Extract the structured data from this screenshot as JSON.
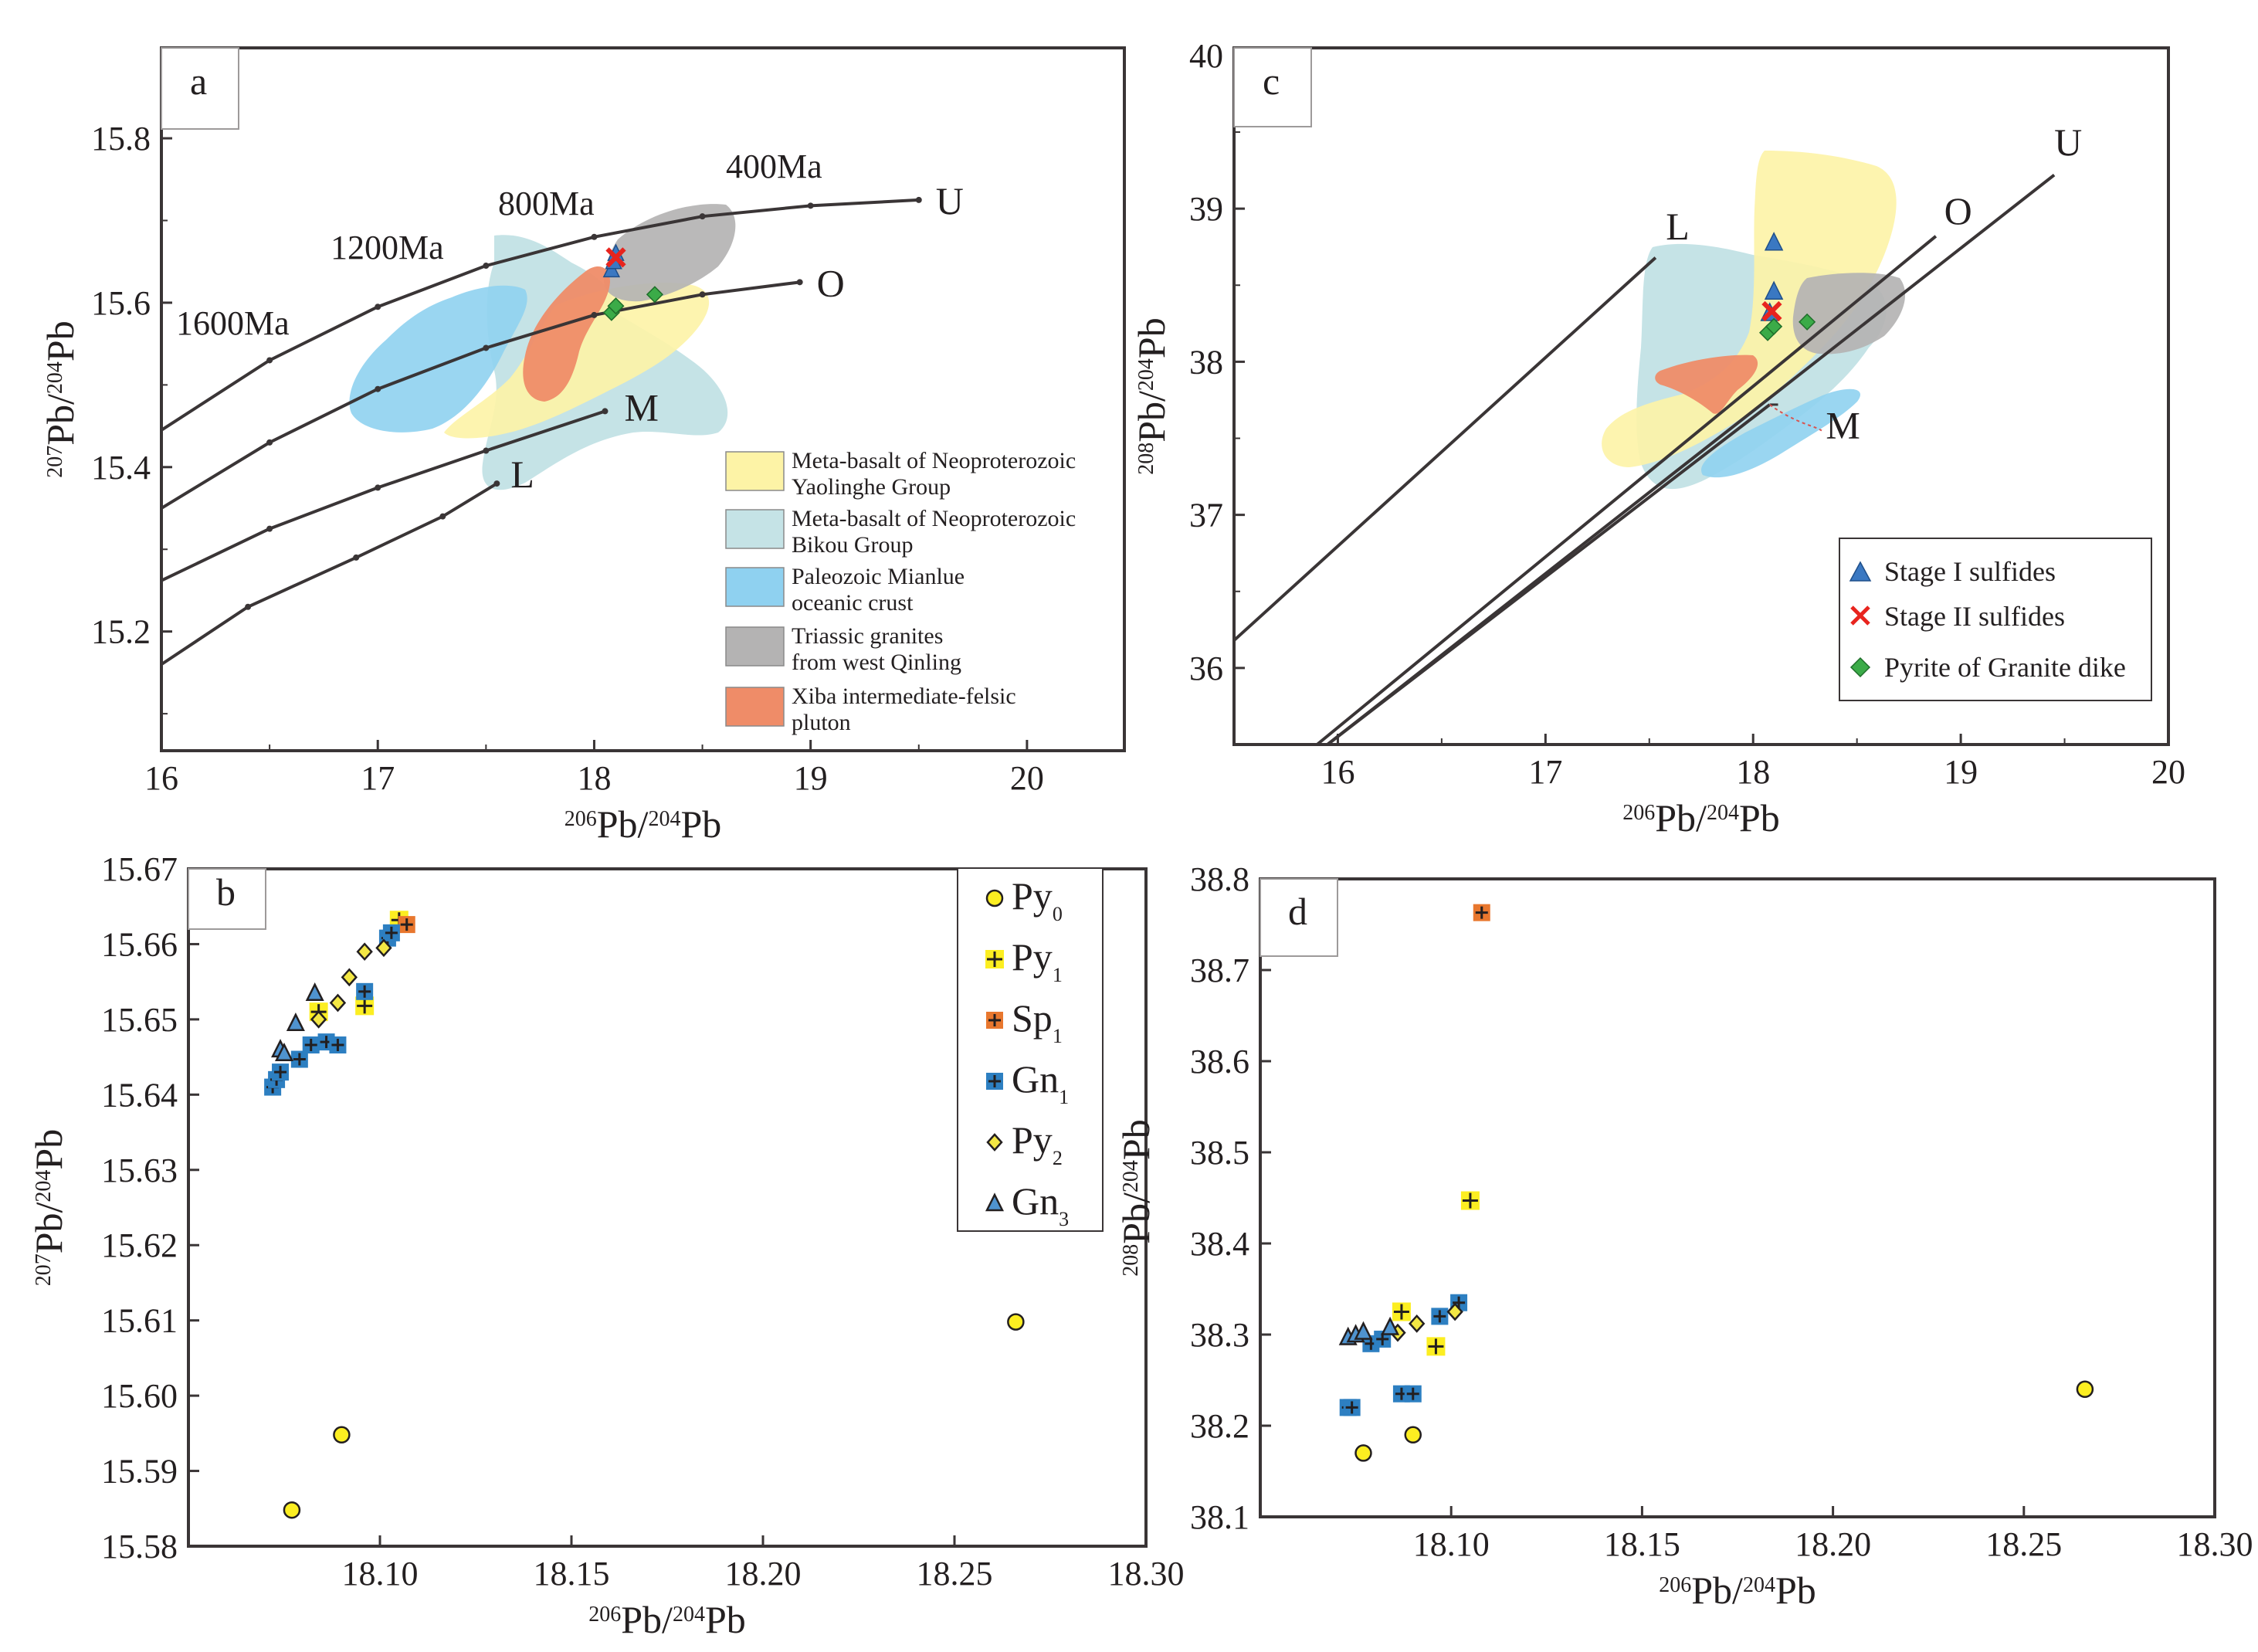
{
  "chart_data": [
    {
      "panel": "a",
      "type": "line",
      "title": "",
      "xlabel": {
        "sup": "206",
        "base": "Pb/",
        "sup2": "204",
        "base2": "Pb"
      },
      "ylabel": {
        "sup": "207",
        "base": "Pb/",
        "sup2": "204",
        "base2": "Pb"
      },
      "xlim": [
        16,
        20.45
      ],
      "ylim": [
        15.055,
        15.91
      ],
      "xticks": [
        "16",
        "17",
        "18",
        "19",
        "20"
      ],
      "yticks": [
        "15.2",
        "15.4",
        "15.6",
        "15.8"
      ],
      "ytick_values": [
        15.2,
        15.4,
        15.6,
        15.8
      ],
      "series": [
        {
          "name": "U",
          "label": "U",
          "x": [
            16.0,
            16.5,
            17.0,
            17.5,
            18.0,
            18.5,
            19.0,
            19.5
          ],
          "y": [
            15.445,
            15.53,
            15.595,
            15.645,
            15.68,
            15.705,
            15.718,
            15.725
          ]
        },
        {
          "name": "O",
          "label": "O",
          "x": [
            16.0,
            16.5,
            17.0,
            17.5,
            18.0,
            18.5,
            18.95
          ],
          "y": [
            15.35,
            15.43,
            15.495,
            15.545,
            15.585,
            15.61,
            15.625
          ]
        },
        {
          "name": "M",
          "label": "M",
          "x": [
            16.0,
            16.5,
            17.0,
            17.5,
            18.05
          ],
          "y": [
            15.262,
            15.325,
            15.375,
            15.42,
            15.468
          ]
        },
        {
          "name": "L",
          "label": "L",
          "x": [
            16.0,
            16.4,
            16.9,
            17.3,
            17.55
          ],
          "y": [
            15.16,
            15.23,
            15.29,
            15.34,
            15.38
          ]
        }
      ],
      "age_labels": [
        "400Ma",
        "800Ma",
        "1200Ma",
        "1600Ma"
      ],
      "fields": [
        {
          "name": "Meta-basalt of Neoproterozoic Bikou Group",
          "label1": "Meta-basalt of Neoproterozoic",
          "label2": "Bikou Group",
          "color": "#c5e3e6"
        },
        {
          "name": "Meta-basalt of Neoproterozoic Yaolinghe Group",
          "label1": "Meta-basalt of Neoproterozoic",
          "label2": "Yaolinghe Group",
          "color": "#fdf3a6"
        },
        {
          "name": "Paleozoic Mianlue oceanic crust",
          "label1": "Paleozoic Mianlue",
          "label2": "oceanic crust",
          "color": "#8fd1f0"
        },
        {
          "name": "Triassic granites from west Qinling",
          "label1": "Triassic granites",
          "label2": "from west Qinling",
          "color": "#b4b3b3"
        },
        {
          "name": "Xiba intermediate-felsic pluton",
          "label1": "Xiba intermediate-felsic",
          "label2": "pluton",
          "color": "#ef8c68"
        }
      ]
    },
    {
      "panel": "b",
      "type": "scatter",
      "xlabel": {
        "sup": "206",
        "base": "Pb/",
        "sup2": "204",
        "base2": "Pb"
      },
      "ylabel": {
        "sup": "207",
        "base": "Pb/",
        "sup2": "204",
        "base2": "Pb"
      },
      "xlim": [
        18.05,
        18.3
      ],
      "ylim": [
        15.58,
        15.67
      ],
      "xticks": [
        "18.10",
        "18.15",
        "18.20",
        "18.25",
        "18.30"
      ],
      "yticks": [
        "15.58",
        "15.59",
        "15.60",
        "15.61",
        "15.62",
        "15.63",
        "15.64",
        "15.65",
        "15.66",
        "15.67"
      ],
      "series": [
        {
          "name": "Py0",
          "base": "Py",
          "sub": "0",
          "x": [
            18.077,
            18.09,
            18.266
          ],
          "y": [
            15.5848,
            15.5948,
            15.6098
          ]
        },
        {
          "name": "Py1",
          "base": "Py",
          "sub": "1",
          "x": [
            18.084,
            18.096,
            18.105
          ],
          "y": [
            15.651,
            15.6518,
            15.6632
          ]
        },
        {
          "name": "Sp1",
          "base": "Sp",
          "sub": "1",
          "x": [
            18.107
          ],
          "y": [
            15.6626
          ]
        },
        {
          "name": "Gn1",
          "base": "Gn",
          "sub": "1",
          "x": [
            18.072,
            18.073,
            18.074,
            18.079,
            18.082,
            18.086,
            18.089,
            18.096,
            18.102,
            18.103
          ],
          "y": [
            15.641,
            15.642,
            15.643,
            15.6447,
            15.6466,
            15.647,
            15.6466,
            15.6537,
            15.6608,
            15.6615
          ]
        },
        {
          "name": "Py2",
          "base": "Py",
          "sub": "2",
          "x": [
            18.084,
            18.089,
            18.092,
            18.096,
            18.101
          ],
          "y": [
            15.65,
            15.6522,
            15.6556,
            15.659,
            15.6595
          ]
        },
        {
          "name": "Gn3",
          "base": "Gn",
          "sub": "3",
          "x": [
            18.074,
            18.075,
            18.078,
            18.083
          ],
          "y": [
            15.646,
            15.6455,
            15.6495,
            15.6535
          ]
        }
      ]
    },
    {
      "panel": "c",
      "type": "line",
      "xlabel": {
        "sup": "206",
        "base": "Pb/",
        "sup2": "204",
        "base2": "Pb"
      },
      "ylabel": {
        "sup": "208",
        "base": "Pb/",
        "sup2": "204",
        "base2": "Pb"
      },
      "xlim": [
        15.5,
        20
      ],
      "ylim": [
        35.5,
        40.05
      ],
      "xticks": [
        "16",
        "17",
        "18",
        "19",
        "20"
      ],
      "yticks": [
        "36",
        "37",
        "38",
        "39",
        "40"
      ],
      "series": [
        {
          "name": "L",
          "label": "L",
          "x": [
            15.5,
            17.53
          ],
          "y": [
            36.18,
            38.68
          ]
        },
        {
          "name": "O",
          "label": "O",
          "x": [
            15.9,
            18.88
          ],
          "y": [
            35.5,
            38.82
          ]
        },
        {
          "name": "U",
          "label": "U",
          "x": [
            15.95,
            19.45
          ],
          "y": [
            35.5,
            39.22
          ]
        },
        {
          "name": "M",
          "label": "M",
          "x": [
            15.95,
            18.08
          ],
          "y": [
            35.5,
            37.72
          ]
        }
      ],
      "legend": [
        {
          "name": "Stage I sulfides",
          "color": "#3a78c2",
          "marker": "triangle"
        },
        {
          "name": "Stage II sulfides",
          "color": "#e8241e",
          "marker": "x"
        },
        {
          "name": "Pyrite of Granite dike",
          "color": "#3bab48",
          "marker": "diamond"
        }
      ]
    },
    {
      "panel": "d",
      "type": "scatter",
      "xlabel": {
        "sup": "206",
        "base": "Pb/",
        "sup2": "204",
        "base2": "Pb"
      },
      "ylabel": {
        "sup": "208",
        "base": "Pb/",
        "sup2": "204",
        "base2": "Pb"
      },
      "xlim": [
        18.05,
        18.3
      ],
      "ylim": [
        38.1,
        38.8
      ],
      "xticks": [
        "18.10",
        "18.15",
        "18.20",
        "18.25",
        "18.30"
      ],
      "yticks": [
        "38.1",
        "38.2",
        "38.3",
        "38.4",
        "38.5",
        "38.6",
        "38.7",
        "38.8"
      ],
      "series": [
        {
          "name": "Py0",
          "x": [
            18.077,
            18.09,
            18.266
          ],
          "y": [
            38.17,
            38.19,
            38.24
          ]
        },
        {
          "name": "Py1",
          "x": [
            18.087,
            18.096,
            18.105
          ],
          "y": [
            38.325,
            38.287,
            38.447
          ]
        },
        {
          "name": "Sp1",
          "x": [
            18.108
          ],
          "y": [
            38.763
          ]
        },
        {
          "name": "Gn1",
          "x": [
            18.073,
            18.074,
            18.079,
            18.082,
            18.087,
            18.09,
            18.097,
            18.102
          ],
          "y": [
            38.22,
            38.22,
            38.29,
            38.295,
            38.235,
            38.235,
            38.32,
            38.335
          ]
        },
        {
          "name": "Py2",
          "x": [
            18.086,
            18.091,
            18.101
          ],
          "y": [
            38.302,
            38.312,
            38.325
          ]
        },
        {
          "name": "Gn3",
          "x": [
            18.073,
            18.075,
            18.077,
            18.084
          ],
          "y": [
            38.297,
            38.3,
            38.303,
            38.308
          ]
        }
      ]
    }
  ],
  "panel_labels": {
    "a": "a",
    "b": "b",
    "c": "c",
    "d": "d"
  },
  "colors": {
    "curve": "#3a3536",
    "py0": "#fcee21",
    "py1": "#fcee21",
    "sp1": "#e8772e",
    "gn1": "#2d7fc1",
    "py2": "#f3e744",
    "gn3": "#4f93cf",
    "stage1": "#3a78c2",
    "stage2": "#e8241e",
    "granite": "#3bab48"
  }
}
